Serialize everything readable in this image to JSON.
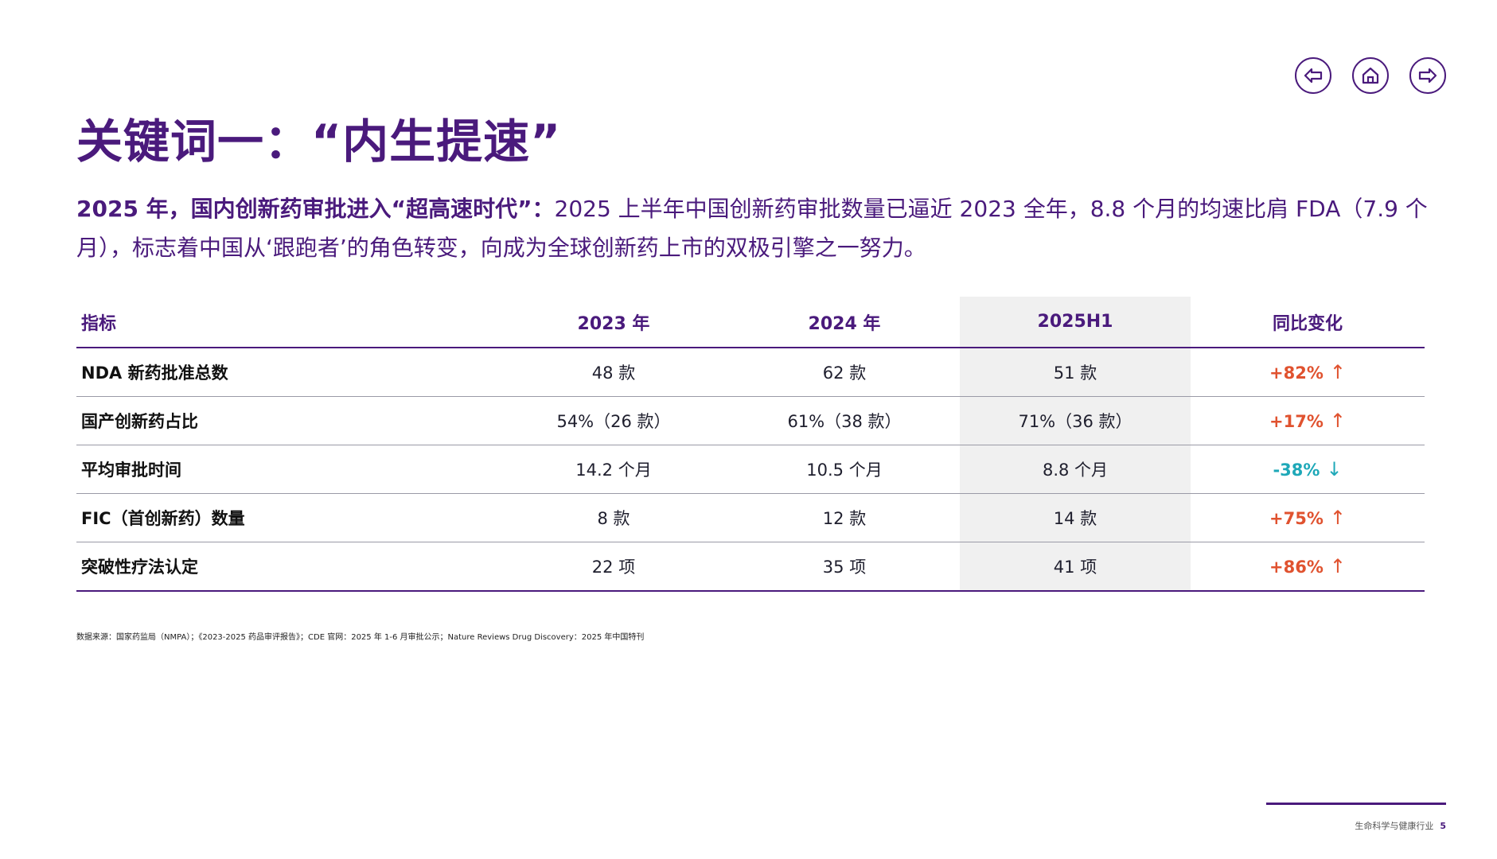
{
  "title": "关键词一：“内生提速”",
  "nav": [
    {
      "name": "prev-button",
      "icon": "arrow-left-icon"
    },
    {
      "name": "home-button",
      "icon": "home-icon"
    },
    {
      "name": "next-button",
      "icon": "arrow-right-icon"
    }
  ],
  "colors": {
    "accent": "#4a1a7c",
    "up": "#e0522f",
    "down": "#1ea8b8",
    "highlight_col": "#f0f0f0"
  },
  "intro": {
    "highlight": "2025 年，国内创新药审批进入“超高速时代”：",
    "body": "2025 上半年中国创新药审批数量已逼近 2023 全年，8.8 个月的均速比肩 FDA（7.9 个月），标志着中国从‘跟跑者’的角色转变，向成为全球创新药上市的双极引擎之一努力。"
  },
  "table": {
    "headers": [
      "指标",
      "2023 年",
      "2024 年",
      "2025H1",
      "同比变化"
    ],
    "highlight_column": "2025H1",
    "rows": [
      {
        "metric": "NDA 新药批准总数",
        "y2023": "48 款",
        "y2024": "62 款",
        "h2025": "51 款",
        "change": "+82%",
        "dir": "up",
        "arrow": "↑"
      },
      {
        "metric": "国产创新药占比",
        "y2023": "54%（26 款）",
        "y2024": "61%（38 款）",
        "h2025": "71%（36 款）",
        "change": "+17%",
        "dir": "up",
        "arrow": "↑"
      },
      {
        "metric": "平均审批时间",
        "y2023": "14.2 个月",
        "y2024": "10.5 个月",
        "h2025": "8.8 个月",
        "change": "-38%",
        "dir": "down",
        "arrow": "↓"
      },
      {
        "metric": "FIC（首创新药）数量",
        "y2023": "8 款",
        "y2024": "12 款",
        "h2025": "14 款",
        "change": "+75%",
        "dir": "up",
        "arrow": "↑"
      },
      {
        "metric": "突破性疗法认定",
        "y2023": "22 项",
        "y2024": "35 项",
        "h2025": "41 项",
        "change": "+86%",
        "dir": "up",
        "arrow": "↑"
      }
    ]
  },
  "source": "数据来源：国家药监局（NMPA）；《2023-2025 药品审评报告》；CDE 官网：2025 年 1-6 月审批公示；Nature Reviews Drug Discovery：2025 年中国特刊",
  "footer": {
    "section": "生命科学与健康行业",
    "page": "5"
  }
}
